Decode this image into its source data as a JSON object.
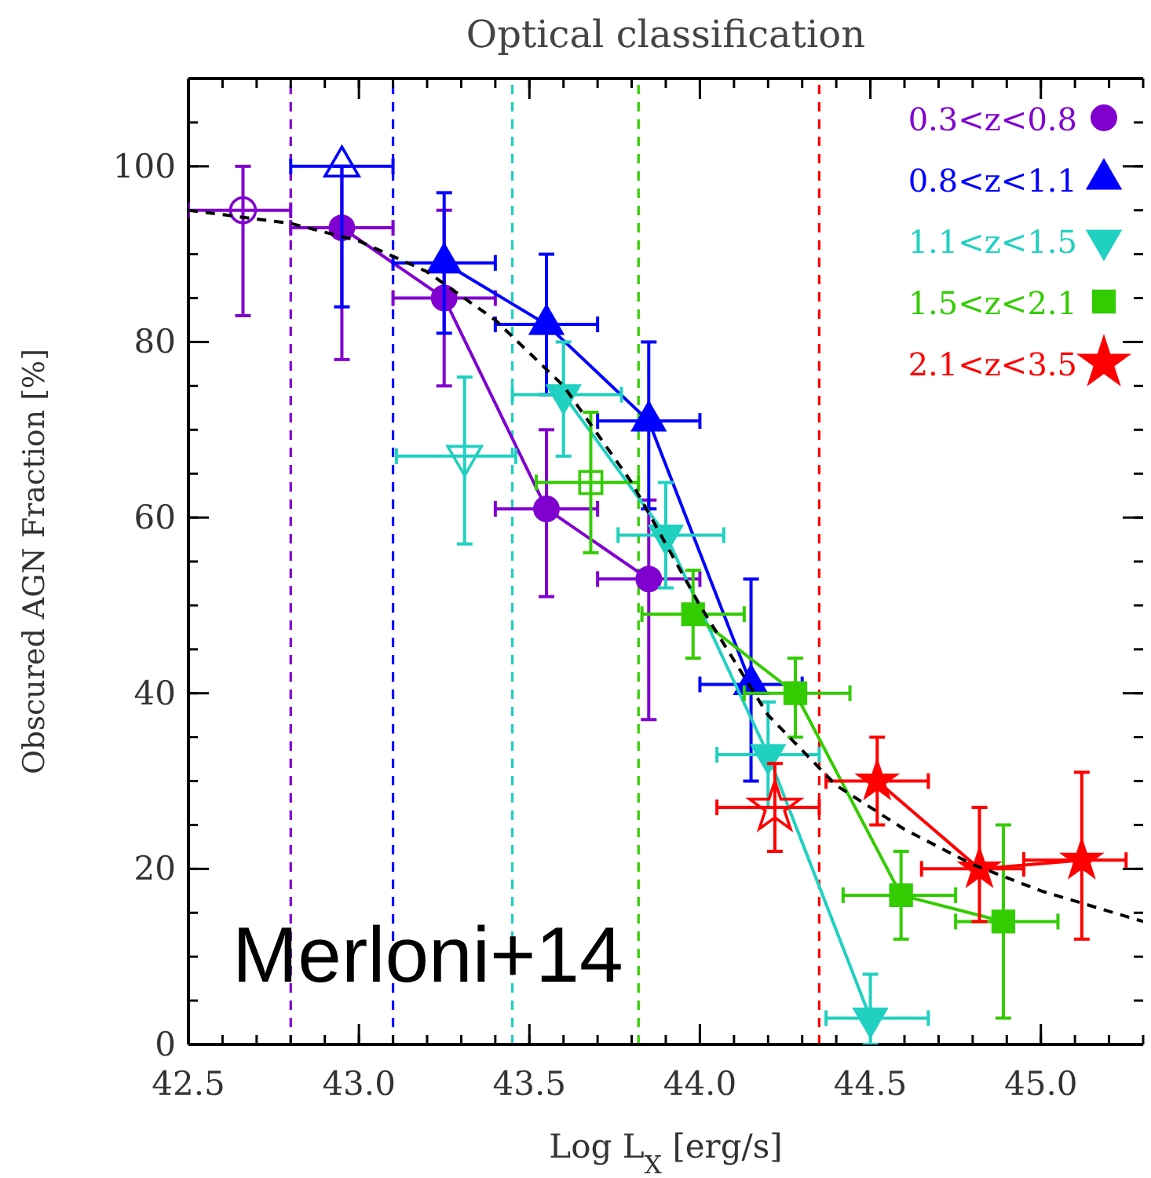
{
  "chart_data": {
    "type": "line",
    "title": "Optical classification",
    "xlabel": "Log L$_{X}$ [erg/s]",
    "ylabel": "Obscured AGN Fraction [%]",
    "xlim": [
      42.5,
      45.3
    ],
    "xticks": [
      {
        "value": 42.5,
        "label": "42.5"
      },
      {
        "value": 43,
        "label": "43.0"
      },
      {
        "value": 43.5,
        "label": "43.5"
      },
      {
        "value": 44,
        "label": "44.0"
      },
      {
        "value": 44.5,
        "label": "44.5"
      },
      {
        "value": 45,
        "label": "45.0"
      }
    ],
    "ylim": [
      0,
      110
    ],
    "yticks": [
      0,
      20,
      40,
      60,
      80,
      100
    ],
    "legend": "top right",
    "grid": false,
    "series": [
      {
        "name": "0.3<z<0.8",
        "color": "#8000d0",
        "marker": "circle",
        "x": [
          42.95,
          43.25,
          43.55,
          43.85
        ],
        "values": [
          93,
          85,
          61,
          53
        ],
        "errors": [
          [
            78,
            100
          ],
          [
            75,
            95
          ],
          [
            51,
            70
          ],
          [
            37,
            62
          ]
        ],
        "xerrors": [
          [
            42.8,
            43.1
          ],
          [
            43.1,
            43.4
          ],
          [
            43.4,
            43.7
          ],
          [
            43.7,
            44.0
          ]
        ]
      },
      {
        "name": "0.8<z<1.1",
        "color": "#0000ff",
        "marker": "triangle",
        "x": [
          43.25,
          43.55,
          43.85,
          44.15
        ],
        "values": [
          89,
          82,
          71,
          41
        ],
        "errors": [
          [
            81,
            97
          ],
          [
            74,
            90
          ],
          [
            61,
            80
          ],
          [
            30,
            53
          ]
        ],
        "xerrors": [
          [
            43.1,
            43.4
          ],
          [
            43.4,
            43.7
          ],
          [
            43.7,
            44.0
          ],
          [
            44.0,
            44.3
          ]
        ]
      },
      {
        "name": "1.1<z<1.5",
        "color": "#20d0c0",
        "marker": "triangle-down",
        "x": [
          43.6,
          43.9,
          44.2,
          44.5
        ],
        "values": [
          74,
          58,
          33,
          3
        ],
        "errors": [
          [
            67,
            80
          ],
          [
            52,
            64
          ],
          [
            27,
            39
          ],
          [
            0,
            8
          ]
        ],
        "xerrors": [
          [
            43.45,
            43.77
          ],
          [
            43.76,
            44.07
          ],
          [
            44.05,
            44.35
          ],
          [
            44.37,
            44.67
          ]
        ]
      },
      {
        "name": "1.5<z<2.1",
        "color": "#33cc00",
        "marker": "square",
        "x": [
          43.98,
          44.28,
          44.59,
          44.89
        ],
        "values": [
          49,
          40,
          17,
          14
        ],
        "errors": [
          [
            44,
            54
          ],
          [
            35,
            44
          ],
          [
            12,
            22
          ],
          [
            3,
            25
          ]
        ],
        "xerrors": [
          [
            43.83,
            44.13
          ],
          [
            44.13,
            44.44
          ],
          [
            44.42,
            44.75
          ],
          [
            44.75,
            45.05
          ]
        ]
      },
      {
        "name": "2.1<z<3.5",
        "color": "#ff0000",
        "marker": "star",
        "x": [
          44.52,
          44.82,
          45.12
        ],
        "values": [
          30,
          20,
          21
        ],
        "errors": [
          [
            25,
            35
          ],
          [
            14,
            27
          ],
          [
            12,
            31
          ]
        ],
        "xerrors": [
          [
            44.37,
            44.67
          ],
          [
            44.65,
            44.95
          ],
          [
            44.95,
            45.25
          ]
        ]
      },
      {
        "type": "scatter",
        "color": "#8000d0",
        "marker": "circle",
        "x": [
          42.66
        ],
        "values": [
          95
        ],
        "errors": [
          [
            83,
            100
          ]
        ],
        "xerrors": [
          [
            42.5,
            42.8
          ]
        ]
      },
      {
        "type": "scatter",
        "color": "#0000ff",
        "marker": "triangle",
        "x": [
          42.95
        ],
        "values": [
          100
        ],
        "errors": [
          [
            84,
            100
          ]
        ],
        "xerrors": [
          [
            42.8,
            43.1
          ]
        ]
      },
      {
        "type": "scatter",
        "color": "#20d0c0",
        "marker": "triangle-down",
        "x": [
          43.31
        ],
        "values": [
          67
        ],
        "errors": [
          [
            57,
            76
          ]
        ],
        "xerrors": [
          [
            43.11,
            43.46
          ]
        ]
      },
      {
        "type": "scatter",
        "color": "#33cc00",
        "marker": "square",
        "x": [
          43.68
        ],
        "values": [
          64
        ],
        "errors": [
          [
            56,
            72
          ]
        ],
        "xerrors": [
          [
            43.52,
            43.82
          ]
        ]
      },
      {
        "type": "scatter",
        "color": "#ff0000",
        "marker": "star",
        "x": [
          44.22
        ],
        "values": [
          27
        ],
        "errors": [
          [
            22,
            32
          ]
        ],
        "xerrors": [
          [
            44.05,
            44.35
          ]
        ]
      },
      {
        "type": "line",
        "color": "#000000",
        "marker": "none",
        "line_style": "dashed",
        "x": [
          42.5,
          42.8,
          43.0,
          43.2,
          43.4,
          43.6,
          43.8,
          44.0,
          44.2,
          44.4,
          44.6,
          44.8,
          45.0,
          45.3
        ],
        "values": [
          95,
          93.5,
          91.5,
          88,
          82.5,
          75,
          64,
          50,
          37.5,
          29.5,
          24.5,
          20.5,
          17.5,
          14
        ]
      }
    ],
    "ref_lines": [
      {
        "axis": "x",
        "value": 42.8,
        "color": "#8000d0",
        "line_style": "dashed"
      },
      {
        "axis": "x",
        "value": 43.1,
        "color": "#0000ff",
        "line_style": "dashed"
      },
      {
        "axis": "x",
        "value": 43.45,
        "color": "#20d0c0",
        "line_style": "dashed"
      },
      {
        "axis": "x",
        "value": 43.82,
        "color": "#33cc00",
        "line_style": "dashed"
      },
      {
        "axis": "x",
        "value": 44.35,
        "color": "#ff0000",
        "line_style": "dashed"
      }
    ],
    "annotations": [
      "Merloni+14"
    ]
  }
}
